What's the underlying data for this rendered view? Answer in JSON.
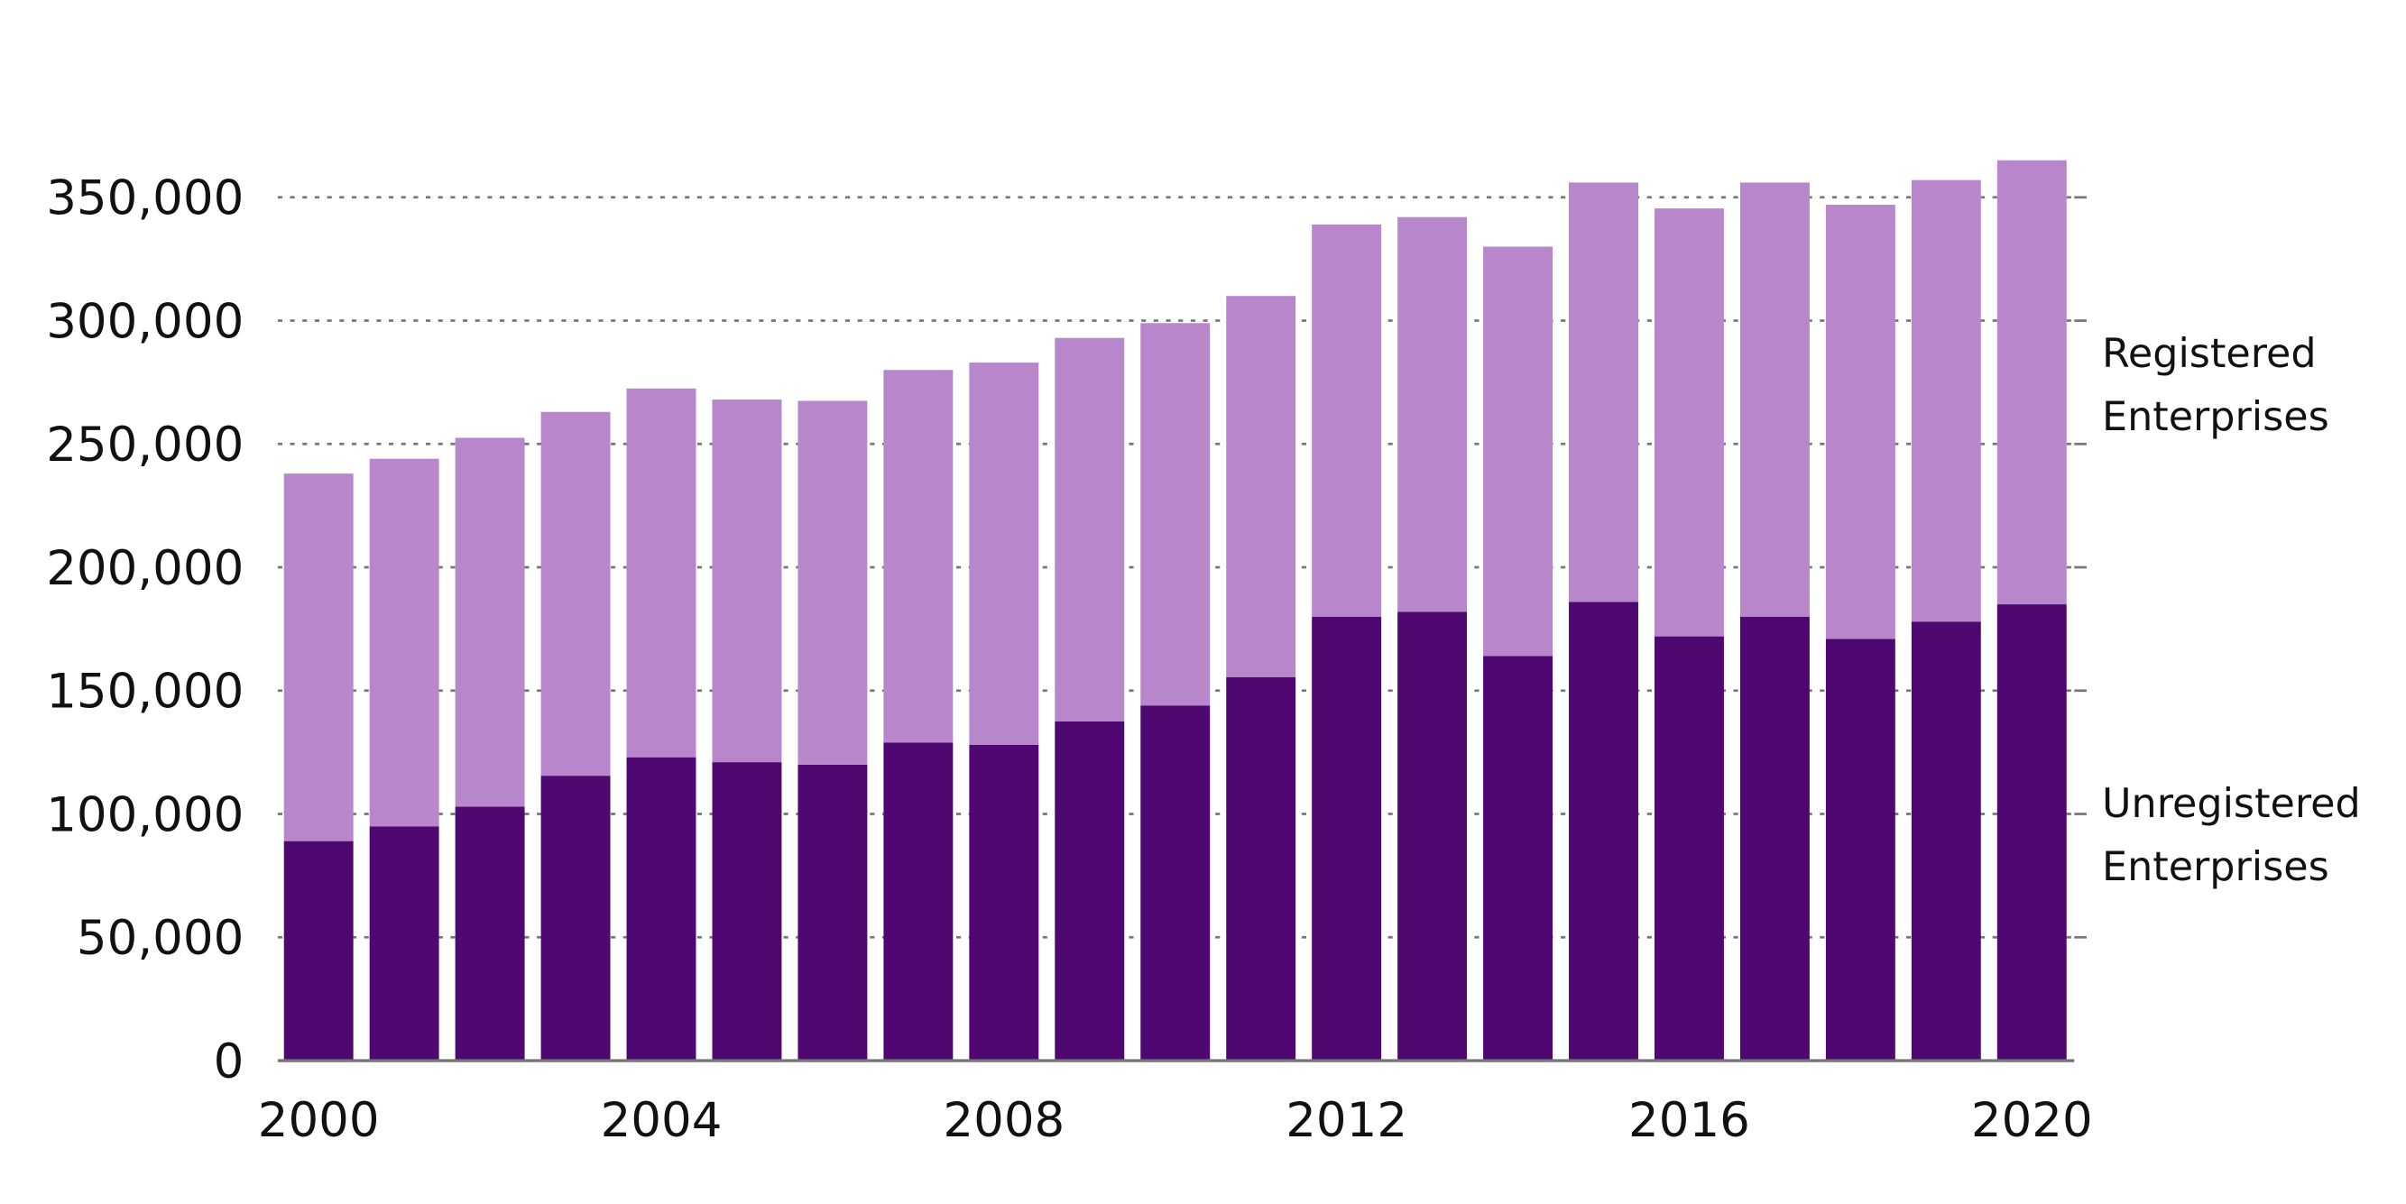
{
  "chart_data": {
    "type": "bar",
    "stacked": true,
    "title": "",
    "xlabel": "",
    "ylabel": "",
    "categories": [
      "2000",
      "2001",
      "2002",
      "2003",
      "2004",
      "2005",
      "2006",
      "2007",
      "2008",
      "2009",
      "2010",
      "2011",
      "2012",
      "2013",
      "2014",
      "2015",
      "2016",
      "2017",
      "2018",
      "2019",
      "2020"
    ],
    "x_tick_labels": [
      "2000",
      "2004",
      "2008",
      "2012",
      "2016",
      "2020"
    ],
    "y_ticks": [
      0,
      50000,
      100000,
      150000,
      200000,
      250000,
      300000,
      350000
    ],
    "y_tick_labels": [
      "0",
      "50,000",
      "100,000",
      "150,000",
      "200,000",
      "250,000",
      "300,000",
      "350,000"
    ],
    "ylim": [
      0,
      370000
    ],
    "grid": "horizontal dotted",
    "legend_placement": "right, inline labels",
    "series": [
      {
        "name": "Unregistered Enterprises",
        "name_lines": [
          "Unregistered",
          "Enterprises"
        ],
        "color": "#4f0772",
        "values": [
          89000,
          95000,
          103000,
          115500,
          123000,
          121000,
          120000,
          129000,
          128000,
          137500,
          144000,
          155500,
          180000,
          182000,
          164000,
          186000,
          172000,
          180000,
          171000,
          178000,
          185000
        ]
      },
      {
        "name": "Registered Enterprises",
        "name_lines": [
          "Registered",
          "Enterprises"
        ],
        "color": "#b886cb",
        "values": [
          149000,
          149000,
          149500,
          147500,
          149500,
          147000,
          147500,
          151000,
          155000,
          155500,
          155000,
          154500,
          159000,
          160000,
          166000,
          170000,
          173500,
          176000,
          176000,
          179000,
          180000
        ]
      }
    ]
  }
}
